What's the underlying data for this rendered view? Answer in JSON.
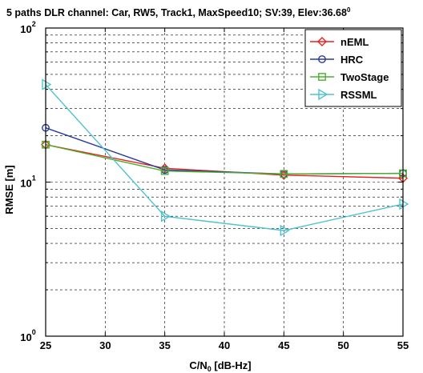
{
  "chart_data": {
    "type": "line",
    "title": "5 paths DLR channel: Car, RW5, Track1, MaxSpeed10; SV:39, Elev:36.68",
    "title_sup": "0",
    "xlabel_main": "C/N",
    "xlabel_sub": "0",
    "xlabel_unit": " [dB-Hz]",
    "ylabel": "RMSE [m]",
    "yscale": "log",
    "xlim": [
      25,
      55
    ],
    "ylim": [
      1,
      100
    ],
    "x_ticks": [
      "25",
      "30",
      "35",
      "40",
      "45",
      "50",
      "55"
    ],
    "y_ticks": [
      {
        "base": "10",
        "exp": "0",
        "value": 1
      },
      {
        "base": "10",
        "exp": "1",
        "value": 10
      },
      {
        "base": "10",
        "exp": "2",
        "value": 100
      }
    ],
    "grid": true,
    "legend_position": "top-right",
    "x": [
      25,
      35,
      45,
      55
    ],
    "series": [
      {
        "name": "nEML",
        "color": "#e8211f",
        "marker": "diamond",
        "values": [
          17.5,
          12.3,
          11.1,
          10.6
        ]
      },
      {
        "name": "HRC",
        "color": "#2a3a9e",
        "marker": "circle",
        "values": [
          22.5,
          12.0,
          11.3,
          11.4
        ]
      },
      {
        "name": "TwoStage",
        "color": "#4caf2e",
        "marker": "square",
        "values": [
          17.5,
          11.8,
          11.3,
          11.4
        ]
      },
      {
        "name": "RSSML",
        "color": "#4fc3cf",
        "marker": "triangle-right",
        "values": [
          43,
          6.0,
          4.85,
          7.2
        ]
      }
    ]
  }
}
